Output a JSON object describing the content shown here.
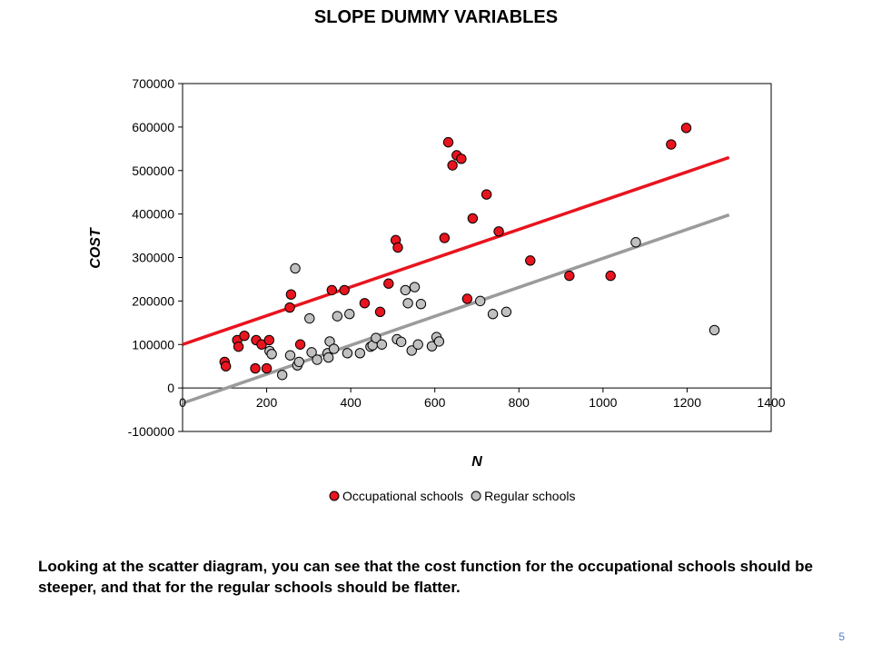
{
  "slide": {
    "title": "SLOPE DUMMY VARIABLES",
    "caption": "Looking at the scatter diagram, you can see that the cost function for the occupational schools should be steeper, and that for the regular schools should be flatter.",
    "page_number": "5"
  },
  "chart_data": {
    "type": "scatter",
    "title": "",
    "xlabel": "N",
    "ylabel": "COST",
    "xlim": [
      0,
      1400
    ],
    "ylim": [
      -100000,
      700000
    ],
    "x_ticks": [
      0,
      200,
      400,
      600,
      800,
      1000,
      1200,
      1400
    ],
    "y_ticks": [
      -100000,
      0,
      100000,
      200000,
      300000,
      400000,
      500000,
      600000,
      700000
    ],
    "grid": false,
    "legend_position": "bottom",
    "series": [
      {
        "name": "Occupational schools",
        "color": "#e8141e",
        "points": [
          [
            100,
            60000
          ],
          [
            103,
            50000
          ],
          [
            130,
            110000
          ],
          [
            133,
            95000
          ],
          [
            147,
            120000
          ],
          [
            173,
            45000
          ],
          [
            175,
            110000
          ],
          [
            188,
            100000
          ],
          [
            200,
            45000
          ],
          [
            206,
            110000
          ],
          [
            255,
            185000
          ],
          [
            258,
            215000
          ],
          [
            280,
            100000
          ],
          [
            355,
            225000
          ],
          [
            385,
            225000
          ],
          [
            433,
            195000
          ],
          [
            470,
            175000
          ],
          [
            490,
            240000
          ],
          [
            507,
            340000
          ],
          [
            512,
            323000
          ],
          [
            623,
            345000
          ],
          [
            632,
            565000
          ],
          [
            642,
            512000
          ],
          [
            652,
            535000
          ],
          [
            663,
            527000
          ],
          [
            677,
            205000
          ],
          [
            690,
            390000
          ],
          [
            723,
            445000
          ],
          [
            752,
            360000
          ],
          [
            827,
            293000
          ],
          [
            920,
            258000
          ],
          [
            1018,
            258000
          ],
          [
            1162,
            560000
          ],
          [
            1198,
            598000
          ]
        ],
        "fit_line": [
          [
            0,
            100000
          ],
          [
            1300,
            530000
          ]
        ],
        "fit_color": "#e8141e"
      },
      {
        "name": "Regular schools",
        "color": "#c0c0c0",
        "points": [
          [
            237,
            30000
          ],
          [
            256,
            75000
          ],
          [
            268,
            275000
          ],
          [
            273,
            52000
          ],
          [
            277,
            60000
          ],
          [
            207,
            85000
          ],
          [
            212,
            78000
          ],
          [
            302,
            160000
          ],
          [
            307,
            82000
          ],
          [
            320,
            65000
          ],
          [
            345,
            80000
          ],
          [
            347,
            70000
          ],
          [
            350,
            107000
          ],
          [
            360,
            90000
          ],
          [
            368,
            165000
          ],
          [
            397,
            170000
          ],
          [
            392,
            80000
          ],
          [
            422,
            80000
          ],
          [
            447,
            95000
          ],
          [
            452,
            98000
          ],
          [
            460,
            115000
          ],
          [
            474,
            100000
          ],
          [
            510,
            112000
          ],
          [
            520,
            106000
          ],
          [
            530,
            225000
          ],
          [
            536,
            195000
          ],
          [
            545,
            86000
          ],
          [
            552,
            232000
          ],
          [
            560,
            100000
          ],
          [
            567,
            193000
          ],
          [
            593,
            96000
          ],
          [
            604,
            117000
          ],
          [
            610,
            107000
          ],
          [
            708,
            200000
          ],
          [
            738,
            170000
          ],
          [
            770,
            175000
          ],
          [
            1078,
            335000
          ],
          [
            1265,
            133000
          ]
        ],
        "fit_line": [
          [
            0,
            -35000
          ],
          [
            1300,
            398000
          ]
        ],
        "fit_color": "#9b9b9b"
      }
    ]
  }
}
